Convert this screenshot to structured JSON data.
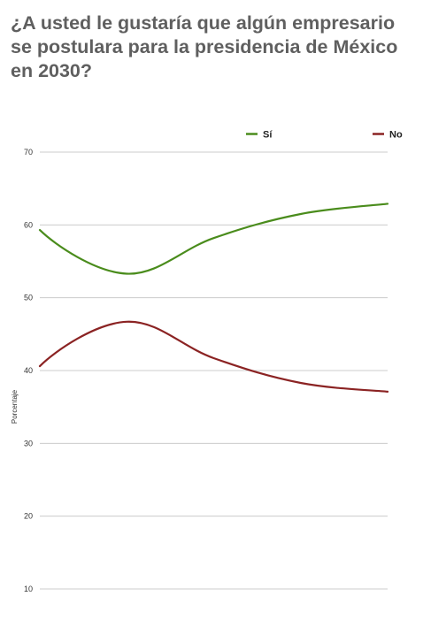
{
  "chart_data": {
    "type": "line",
    "title": "¿A usted le gustaría que algún empresario se postulara para la presidencia de México en 2030?",
    "ylabel": "Porcentaje",
    "xlabel": "",
    "ylim": [
      10,
      70
    ],
    "yticks": [
      10,
      20,
      30,
      40,
      50,
      60,
      70
    ],
    "grid": true,
    "legend_position": "top-right",
    "x": [
      1,
      2,
      3,
      4,
      5
    ],
    "series": [
      {
        "name": "Sí",
        "color": "#4a8c1c",
        "values": [
          59.3,
          53.3,
          58.2,
          61.5,
          62.9
        ]
      },
      {
        "name": "No",
        "color": "#8b2323",
        "values": [
          40.6,
          46.7,
          41.7,
          38.3,
          37.1
        ]
      }
    ]
  }
}
